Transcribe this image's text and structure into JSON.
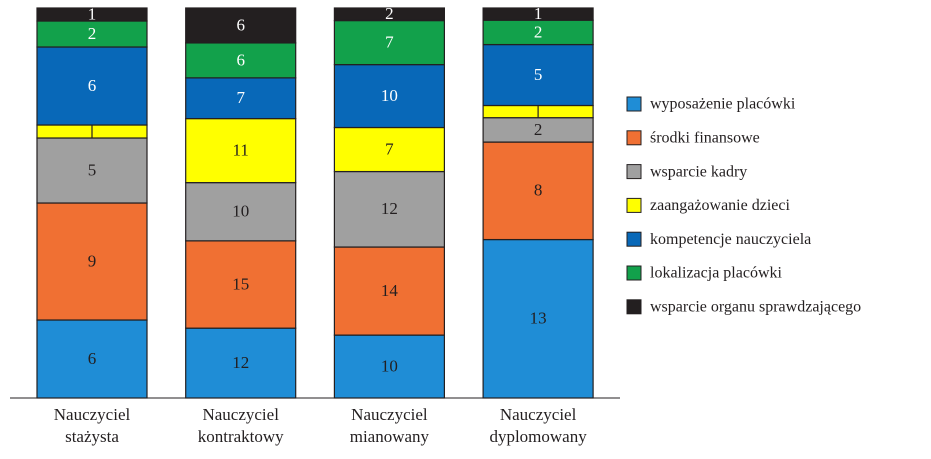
{
  "chart_data": {
    "type": "stacked-percent-bar",
    "categories": [
      "Nauczyciel stażysta",
      "Nauczyciel kontraktowy",
      "Nauczyciel mianowany",
      "Nauczyciel dyplomowany"
    ],
    "series": [
      {
        "name": "wyposażenie placówki",
        "color": "#1f8dd6",
        "values": [
          6,
          12,
          10,
          13
        ]
      },
      {
        "name": "środki finansowe",
        "color": "#f07033",
        "values": [
          9,
          15,
          14,
          8
        ]
      },
      {
        "name": "wsparcie kadry",
        "color": "#a0a0a0",
        "values": [
          5,
          10,
          12,
          2
        ]
      },
      {
        "name": "zaangażowanie dzieci",
        "color": "#ffff00",
        "values": [
          1,
          11,
          7,
          1
        ],
        "value_labels": [
          null,
          "11",
          "7",
          null
        ]
      },
      {
        "name": "kompetencje nauczyciela",
        "color": "#0868b8",
        "values": [
          6,
          7,
          10,
          5
        ]
      },
      {
        "name": "lokalizacja placówki",
        "color": "#12a14b",
        "values": [
          2,
          6,
          7,
          2
        ]
      },
      {
        "name": "wsparcie organu sprawdzającego",
        "color": "#231f20",
        "values": [
          1,
          6,
          2,
          1
        ]
      }
    ],
    "legend": "right"
  }
}
